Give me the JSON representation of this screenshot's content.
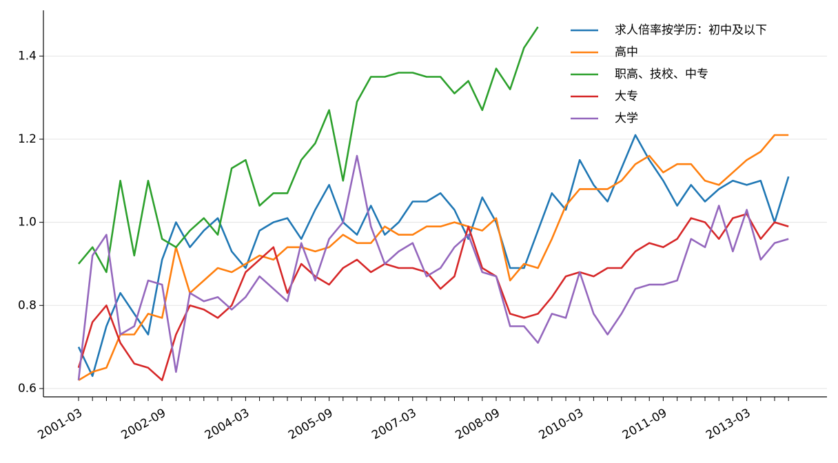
{
  "chart_data": {
    "type": "line",
    "categories": [
      "2001-03",
      null,
      null,
      null,
      null,
      null,
      "2002-09",
      null,
      null,
      null,
      null,
      null,
      "2004-03",
      null,
      null,
      null,
      null,
      null,
      "2005-09",
      null,
      null,
      null,
      null,
      null,
      "2007-03",
      null,
      null,
      null,
      null,
      null,
      "2008-09",
      null,
      null,
      null,
      null,
      null,
      "2010-03",
      null,
      null,
      null,
      null,
      null,
      "2011-09",
      null,
      null,
      null,
      null,
      null,
      "2013-03",
      null,
      null,
      null
    ],
    "ylim": [
      0.58,
      1.51
    ],
    "yticks": [
      0.6,
      0.8,
      {
        "value": 1.0,
        "label": "1.0"
      },
      1.2,
      1.4
    ],
    "grid": true,
    "legend": "upper right",
    "series": [
      {
        "name": "求人倍率按学历：初中及以下",
        "color": "#1f77b4",
        "values": [
          0.7,
          0.63,
          0.75,
          0.83,
          0.78,
          0.73,
          0.91,
          1.0,
          0.94,
          0.98,
          1.01,
          0.93,
          0.89,
          0.98,
          1.0,
          1.01,
          0.96,
          1.03,
          1.09,
          1.0,
          0.97,
          1.04,
          0.97,
          1.0,
          1.05,
          1.05,
          1.07,
          1.03,
          0.96,
          1.06,
          1.0,
          0.89,
          0.89,
          0.98,
          1.07,
          1.03,
          1.15,
          1.09,
          1.05,
          1.13,
          1.21,
          1.15,
          1.1,
          1.04,
          1.09,
          1.05,
          1.08,
          1.1,
          1.09,
          1.1,
          1.0,
          1.11
        ]
      },
      {
        "name": "高中",
        "color": "#ff7f0e",
        "values": [
          0.62,
          0.64,
          0.65,
          0.73,
          0.73,
          0.78,
          0.77,
          0.94,
          0.83,
          0.86,
          0.89,
          0.88,
          0.9,
          0.92,
          0.91,
          0.94,
          0.94,
          0.93,
          0.94,
          0.97,
          0.95,
          0.95,
          0.99,
          0.97,
          0.97,
          0.99,
          0.99,
          1.0,
          0.99,
          0.98,
          1.01,
          0.86,
          0.9,
          0.89,
          0.96,
          1.04,
          1.08,
          1.08,
          1.08,
          1.1,
          1.14,
          1.16,
          1.12,
          1.14,
          1.14,
          1.1,
          1.09,
          1.12,
          1.15,
          1.17,
          1.21,
          1.21
        ]
      },
      {
        "name": "职高、技校、中专",
        "color": "#2ca02c",
        "values": [
          0.9,
          0.94,
          0.88,
          1.1,
          0.92,
          1.1,
          0.96,
          0.94,
          0.98,
          1.01,
          0.97,
          1.13,
          1.15,
          1.04,
          1.07,
          1.07,
          1.15,
          1.19,
          1.27,
          1.1,
          1.29,
          1.35,
          1.35,
          1.36,
          1.36,
          1.35,
          1.35,
          1.31,
          1.34,
          1.27,
          1.37,
          1.32,
          1.42,
          1.47,
          null,
          null,
          null,
          null,
          null,
          null,
          null,
          null,
          null,
          null,
          null,
          null,
          null,
          null,
          null,
          null,
          null,
          null
        ]
      },
      {
        "name": "大专",
        "color": "#d62728",
        "values": [
          0.65,
          0.76,
          0.8,
          0.71,
          0.66,
          0.65,
          0.62,
          0.73,
          0.8,
          0.79,
          0.77,
          0.8,
          0.88,
          0.91,
          0.94,
          0.83,
          0.9,
          0.87,
          0.85,
          0.89,
          0.91,
          0.88,
          0.9,
          0.89,
          0.89,
          0.88,
          0.84,
          0.87,
          0.99,
          0.89,
          0.87,
          0.78,
          0.77,
          0.78,
          0.82,
          0.87,
          0.88,
          0.87,
          0.89,
          0.89,
          0.93,
          0.95,
          0.94,
          0.96,
          1.01,
          1.0,
          0.96,
          1.01,
          1.02,
          0.96,
          1.0,
          0.99
        ]
      },
      {
        "name": "大学",
        "color": "#9467bd",
        "values": [
          0.62,
          0.92,
          0.97,
          0.73,
          0.75,
          0.86,
          0.85,
          0.64,
          0.83,
          0.81,
          0.82,
          0.79,
          0.82,
          0.87,
          0.84,
          0.81,
          0.95,
          0.86,
          0.96,
          1.0,
          1.16,
          0.99,
          0.9,
          0.93,
          0.95,
          0.87,
          0.89,
          0.94,
          0.97,
          0.88,
          0.87,
          0.75,
          0.75,
          0.71,
          0.78,
          0.77,
          0.88,
          0.78,
          0.73,
          0.78,
          0.84,
          0.85,
          0.85,
          0.86,
          0.96,
          0.94,
          1.04,
          0.93,
          1.03,
          0.91,
          0.95,
          0.96
        ]
      }
    ]
  }
}
